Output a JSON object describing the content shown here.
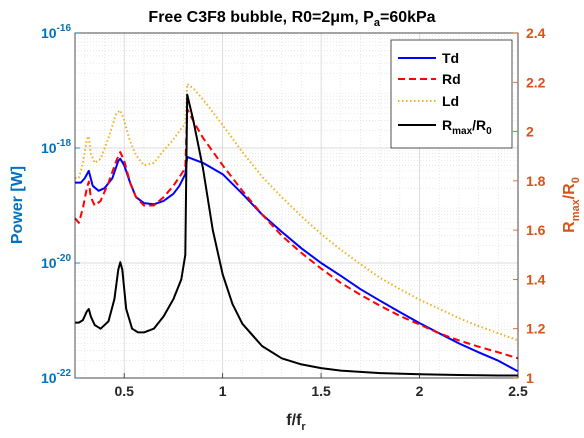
{
  "chart_data": {
    "type": "line",
    "title": "Free C3F8 bubble, R0=2μm, P",
    "title_sub": "a",
    "title_tail": "=60kPa",
    "xlabel": "f/f",
    "xlabel_sub": "r",
    "ylabel_left": "Power [W]",
    "ylabel_right": {
      "R": "R",
      "max": "max",
      "slash": "/R",
      "zero": "0"
    },
    "x_range": [
      0.25,
      2.5
    ],
    "y_left_scale": "log",
    "y_left_range": [
      1e-22,
      1e-16
    ],
    "y_right_range": [
      1.0,
      2.4
    ],
    "grid": true,
    "minor_grid": true,
    "legend_position": "top-right",
    "x_ticks": [
      "0.5",
      "1",
      "1.5",
      "2",
      "2.5"
    ],
    "x_tick_values": [
      0.5,
      1,
      1.5,
      2,
      2.5
    ],
    "y_left_ticks": [
      {
        "value": 1e-22,
        "base": "10",
        "exp": "-22"
      },
      {
        "value": 1e-20,
        "base": "10",
        "exp": "-20"
      },
      {
        "value": 1e-18,
        "base": "10",
        "exp": "-18"
      },
      {
        "value": 1e-16,
        "base": "10",
        "exp": "-16"
      }
    ],
    "y_right_ticks": [
      "1",
      "1.2",
      "1.4",
      "1.6",
      "1.8",
      "2",
      "2.2",
      "2.4"
    ],
    "y_right_tick_values": [
      1.0,
      1.2,
      1.4,
      1.6,
      1.8,
      2.0,
      2.2,
      2.4
    ],
    "colors": {
      "left_axis": "#0072BD",
      "right_axis": "#D95319",
      "Td": "#0000FF",
      "Rd": "#FF0000",
      "Ld": "#EDB120",
      "ratio": "#000000"
    },
    "series": [
      {
        "name": "Td",
        "axis": "left",
        "style": "solid",
        "x": [
          0.25,
          0.28,
          0.3,
          0.32,
          0.34,
          0.37,
          0.4,
          0.44,
          0.47,
          0.48,
          0.5,
          0.53,
          0.56,
          0.6,
          0.65,
          0.7,
          0.75,
          0.78,
          0.8,
          0.81,
          0.82,
          0.9,
          1.0,
          1.1,
          1.2,
          1.3,
          1.4,
          1.5,
          1.6,
          1.7,
          1.8,
          1.9,
          2.0,
          2.1,
          2.2,
          2.3,
          2.4,
          2.5
        ],
        "y": [
          2.5e-19,
          2.5e-19,
          3e-19,
          4e-19,
          2.2e-19,
          1.8e-19,
          2e-19,
          3e-19,
          6e-19,
          6.5e-19,
          5e-19,
          2.5e-19,
          1.4e-19,
          1.1e-19,
          1.05e-19,
          1.2e-19,
          1.6e-19,
          2.2e-19,
          3e-19,
          3.5e-19,
          7e-19,
          5.5e-19,
          3.5e-19,
          1.6e-19,
          7e-20,
          3.5e-20,
          1.8e-20,
          1e-20,
          6e-21,
          3.5e-21,
          2.2e-21,
          1.4e-21,
          9e-22,
          6e-22,
          4e-22,
          2.8e-22,
          2e-22,
          1.3e-22
        ]
      },
      {
        "name": "Rd",
        "axis": "left",
        "style": "dashed",
        "x": [
          0.25,
          0.27,
          0.29,
          0.31,
          0.32,
          0.33,
          0.35,
          0.38,
          0.42,
          0.46,
          0.48,
          0.5,
          0.53,
          0.56,
          0.6,
          0.65,
          0.7,
          0.75,
          0.79,
          0.81,
          0.82,
          0.85,
          0.9,
          1.0,
          1.1,
          1.2,
          1.3,
          1.4,
          1.5,
          1.6,
          1.7,
          1.8,
          1.9,
          2.0,
          2.1,
          2.2,
          2.3,
          2.4,
          2.5
        ],
        "y": [
          6e-20,
          5e-20,
          9e-20,
          2e-19,
          2.6e-19,
          1.4e-19,
          1e-19,
          1.2e-19,
          2.5e-19,
          6e-19,
          8.5e-19,
          6e-19,
          2.5e-19,
          1.4e-19,
          1e-19,
          1e-19,
          1.4e-19,
          2.2e-19,
          3.5e-19,
          4.5e-19,
          4.8e-18,
          3e-18,
          1.5e-18,
          5e-19,
          1.8e-19,
          7e-20,
          3e-20,
          1.5e-20,
          8e-21,
          4.5e-21,
          2.8e-21,
          1.8e-21,
          1.2e-21,
          8.5e-22,
          6e-22,
          4.5e-22,
          3.5e-22,
          2.8e-22,
          2.2e-22
        ]
      },
      {
        "name": "Ld",
        "axis": "left",
        "style": "dotted",
        "x": [
          0.25,
          0.27,
          0.29,
          0.31,
          0.32,
          0.33,
          0.35,
          0.38,
          0.42,
          0.46,
          0.48,
          0.5,
          0.53,
          0.56,
          0.6,
          0.65,
          0.7,
          0.75,
          0.79,
          0.81,
          0.82,
          0.85,
          0.9,
          1.0,
          1.1,
          1.2,
          1.3,
          1.4,
          1.5,
          1.6,
          1.7,
          1.8,
          1.9,
          2.0,
          2.1,
          2.2,
          2.3,
          2.4,
          2.5
        ],
        "y": [
          3e-19,
          3e-19,
          5.5e-19,
          1.4e-18,
          1.6e-18,
          8e-19,
          5.5e-19,
          6.5e-19,
          1.5e-18,
          4e-18,
          4.5e-18,
          3e-18,
          1.3e-18,
          7.5e-19,
          5e-19,
          5.5e-19,
          9e-19,
          1.4e-18,
          2.2e-18,
          2.6e-18,
          1.3e-17,
          1.1e-17,
          7e-18,
          2.5e-18,
          8.5e-19,
          3.2e-19,
          1.4e-19,
          6.5e-20,
          3.2e-20,
          1.7e-20,
          9.5e-21,
          5.5e-21,
          3.5e-21,
          2.3e-21,
          1.6e-21,
          1.1e-21,
          8e-22,
          6e-22,
          4.5e-22
        ]
      },
      {
        "name": "R_max/R_0",
        "axis": "right",
        "style": "solid",
        "x": [
          0.25,
          0.27,
          0.29,
          0.31,
          0.32,
          0.33,
          0.35,
          0.38,
          0.42,
          0.45,
          0.47,
          0.48,
          0.49,
          0.51,
          0.54,
          0.57,
          0.6,
          0.65,
          0.7,
          0.75,
          0.79,
          0.81,
          0.82,
          0.85,
          0.9,
          0.95,
          1.0,
          1.05,
          1.1,
          1.2,
          1.3,
          1.4,
          1.5,
          1.6,
          1.8,
          2.0,
          2.2,
          2.4,
          2.5
        ],
        "y": [
          1.225,
          1.225,
          1.235,
          1.27,
          1.28,
          1.25,
          1.215,
          1.2,
          1.23,
          1.32,
          1.44,
          1.47,
          1.44,
          1.28,
          1.2,
          1.185,
          1.185,
          1.2,
          1.25,
          1.32,
          1.4,
          1.5,
          2.15,
          2.05,
          1.85,
          1.6,
          1.42,
          1.3,
          1.22,
          1.13,
          1.08,
          1.055,
          1.04,
          1.03,
          1.02,
          1.015,
          1.012,
          1.01,
          1.01
        ]
      }
    ]
  }
}
